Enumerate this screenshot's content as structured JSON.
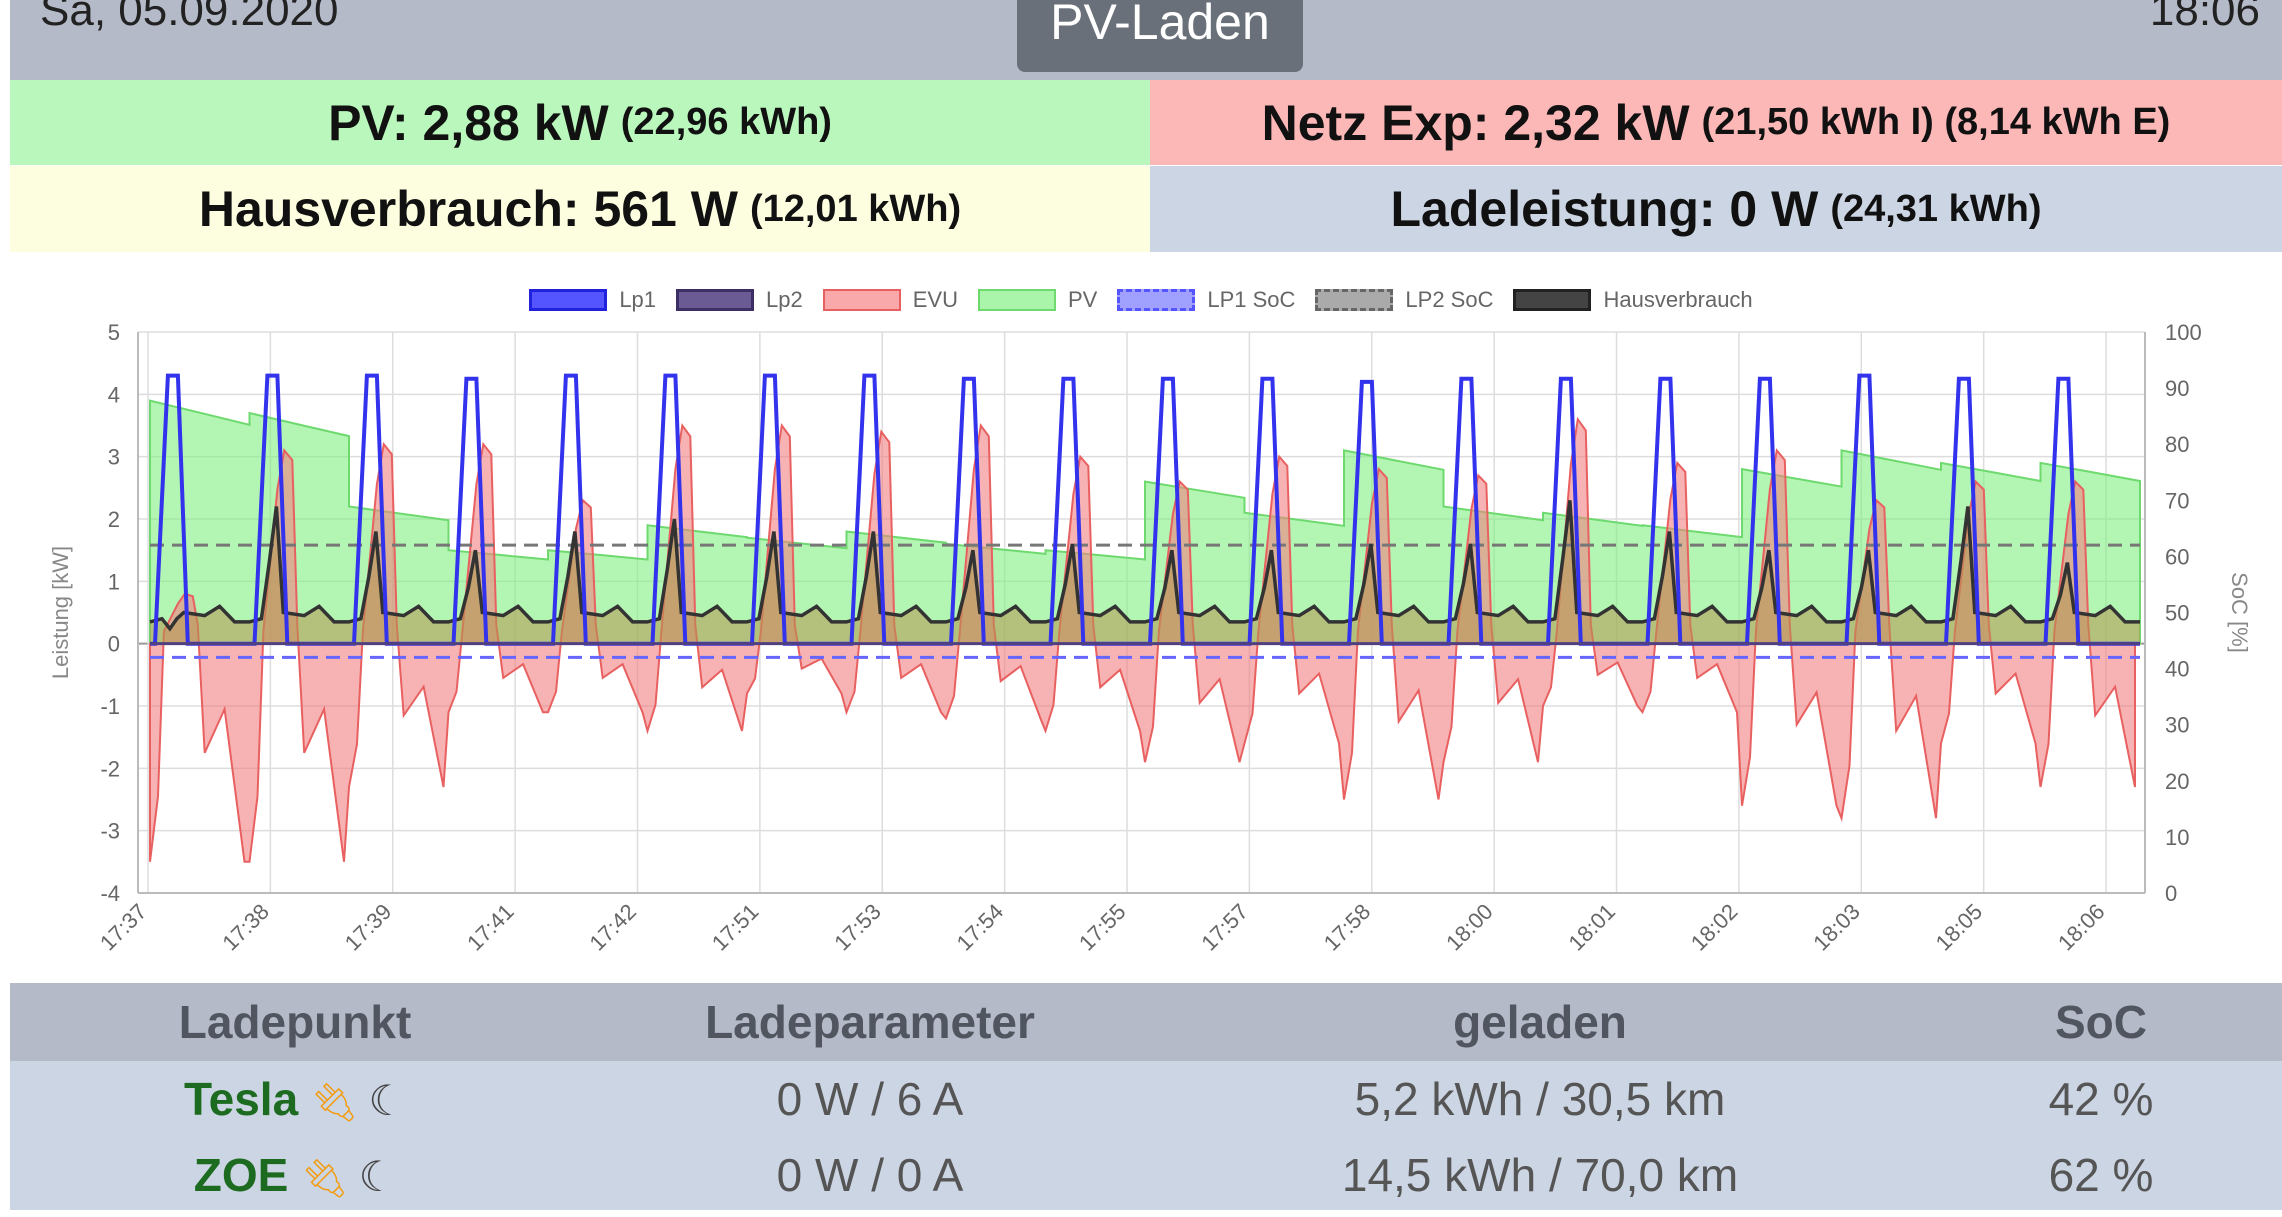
{
  "header": {
    "date": "Sa, 05.09.2020",
    "time": "18:06",
    "mode": "PV-Laden"
  },
  "tiles": {
    "pv": {
      "label": "PV: 2,88 kW",
      "detail": "(22,96 kWh)",
      "color": "#b9f7bd"
    },
    "netz": {
      "label": "Netz Exp: 2,32 kW",
      "detail": "(21,50 kWh I) (8,14 kWh E)",
      "color": "#fcb7b7"
    },
    "haus": {
      "label": "Hausverbrauch: 561 W",
      "detail": "(12,01 kWh)",
      "color": "#fdfde0"
    },
    "lade": {
      "label": "Ladeleistung: 0 W",
      "detail": "(24,31 kWh)",
      "color": "#ccd5e3"
    }
  },
  "legend": [
    {
      "name": "Lp1",
      "color": "#3333ee",
      "style": "fill-blue"
    },
    {
      "name": "Lp2",
      "color": "#504080",
      "style": "fill-purple"
    },
    {
      "name": "EVU",
      "color": "#f28080",
      "style": "fill-red"
    },
    {
      "name": "PV",
      "color": "#80ef80",
      "style": "fill-green"
    },
    {
      "name": "LP1 SoC",
      "color": "#6666ff",
      "style": "dashed"
    },
    {
      "name": "LP2 SoC",
      "color": "#888888",
      "style": "dashed"
    },
    {
      "name": "Hausverbrauch",
      "color": "#333333",
      "style": "fill-dark"
    }
  ],
  "chart_data": {
    "type": "line",
    "ylabel": "Leistung [kW]",
    "y2label": "SoC [%]",
    "ylim": [
      -4,
      5
    ],
    "y2lim": [
      0,
      100
    ],
    "yticks": [
      "-4",
      "-3",
      "-2",
      "-1",
      "0",
      "1",
      "2",
      "3",
      "4",
      "5"
    ],
    "y2ticks": [
      "0",
      "10",
      "20",
      "30",
      "40",
      "50",
      "60",
      "70",
      "80",
      "90",
      "100"
    ],
    "xticks": [
      "17:37",
      "17:38",
      "17:39",
      "17:41",
      "17:42",
      "17:51",
      "17:53",
      "17:54",
      "17:55",
      "17:57",
      "17:58",
      "18:00",
      "18:01",
      "18:02",
      "18:03",
      "18:05",
      "18:06"
    ],
    "grid": true,
    "legend_position": "top",
    "cycles": [
      {
        "lp1": 4.3,
        "evu": -3.5,
        "evu_high": 0.8,
        "haus": 0.4,
        "pv": 3.9
      },
      {
        "lp1": 4.3,
        "evu": -3.5,
        "evu_high": 3.1,
        "haus": 2.2,
        "pv": 3.7
      },
      {
        "lp1": 4.3,
        "evu": -2.3,
        "evu_high": 3.2,
        "haus": 1.8,
        "pv": 2.2
      },
      {
        "lp1": 4.25,
        "evu": -1.1,
        "evu_high": 3.2,
        "haus": 1.5,
        "pv": 1.5
      },
      {
        "lp1": 4.3,
        "evu": -1.1,
        "evu_high": 2.3,
        "haus": 1.8,
        "pv": 1.5
      },
      {
        "lp1": 4.3,
        "evu": -1.4,
        "evu_high": 3.5,
        "haus": 2.0,
        "pv": 1.9
      },
      {
        "lp1": 4.3,
        "evu": -0.8,
        "evu_high": 3.5,
        "haus": 1.8,
        "pv": 1.7
      },
      {
        "lp1": 4.3,
        "evu": -1.1,
        "evu_high": 3.4,
        "haus": 1.8,
        "pv": 1.8
      },
      {
        "lp1": 4.25,
        "evu": -1.2,
        "evu_high": 3.5,
        "haus": 1.5,
        "pv": 1.6
      },
      {
        "lp1": 4.25,
        "evu": -1.4,
        "evu_high": 3.0,
        "haus": 1.6,
        "pv": 1.5
      },
      {
        "lp1": 4.25,
        "evu": -1.9,
        "evu_high": 2.6,
        "haus": 1.5,
        "pv": 2.6
      },
      {
        "lp1": 4.25,
        "evu": -1.6,
        "evu_high": 3.0,
        "haus": 1.5,
        "pv": 2.1
      },
      {
        "lp1": 4.2,
        "evu": -2.5,
        "evu_high": 2.8,
        "haus": 1.6,
        "pv": 3.1
      },
      {
        "lp1": 4.25,
        "evu": -1.9,
        "evu_high": 2.7,
        "haus": 1.6,
        "pv": 2.2
      },
      {
        "lp1": 4.25,
        "evu": -1.0,
        "evu_high": 3.6,
        "haus": 2.3,
        "pv": 2.1
      },
      {
        "lp1": 4.25,
        "evu": -1.1,
        "evu_high": 2.9,
        "haus": 1.8,
        "pv": 1.9
      },
      {
        "lp1": 4.25,
        "evu": -2.6,
        "evu_high": 3.1,
        "haus": 1.5,
        "pv": 2.8
      },
      {
        "lp1": 4.3,
        "evu": -2.8,
        "evu_high": 2.3,
        "haus": 1.5,
        "pv": 3.1
      },
      {
        "lp1": 4.25,
        "evu": -1.6,
        "evu_high": 2.6,
        "haus": 2.2,
        "pv": 2.9
      },
      {
        "lp1": 4.25,
        "evu": -2.3,
        "evu_high": 2.6,
        "haus": 1.3,
        "pv": 2.9
      }
    ],
    "lp1_soc": 42,
    "lp2_soc": 62
  },
  "table": {
    "headers": [
      "Ladepunkt",
      "Ladeparameter",
      "geladen",
      "SoC"
    ],
    "rows": [
      {
        "name": "Tesla",
        "param": "0 W / 6 A",
        "loaded": "5,2 kWh / 30,5 km",
        "soc": "42 %",
        "plug_icon": "plug-icon",
        "moon_icon": "moon-icon"
      },
      {
        "name": "ZOE",
        "param": "0 W / 0 A",
        "loaded": "14,5 kWh / 70,0 km",
        "soc": "62 %",
        "plug_icon": "plug-icon",
        "moon_icon": "moon-icon"
      }
    ]
  }
}
